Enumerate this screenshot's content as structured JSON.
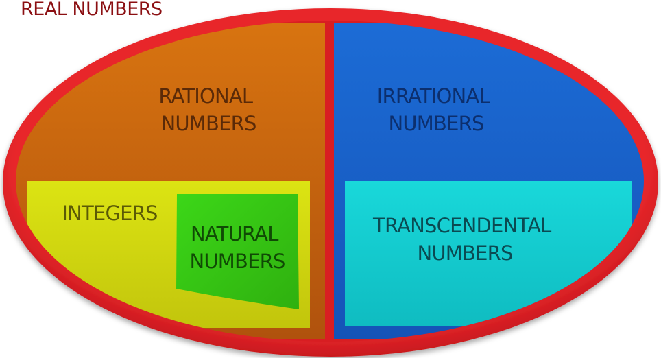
{
  "title": "REAL NUMBERS",
  "regions": {
    "rational": {
      "line1": "RATIONAL",
      "line2": "NUMBERS",
      "color": "#d4700e"
    },
    "irrational": {
      "line1": "IRRATIONAL",
      "line2": "NUMBERS",
      "color": "#1866d2"
    },
    "integers": {
      "label": "INTEGERS",
      "color": "#d6de10"
    },
    "natural": {
      "line1": "NATURAL",
      "line2": "NUMBERS",
      "color": "#3ad413"
    },
    "transcendental": {
      "line1": "TRANSCENDENTAL",
      "line2": "NUMBERS",
      "color": "#14d6d6"
    },
    "outer_ring": {
      "color": "#e3171f"
    }
  }
}
